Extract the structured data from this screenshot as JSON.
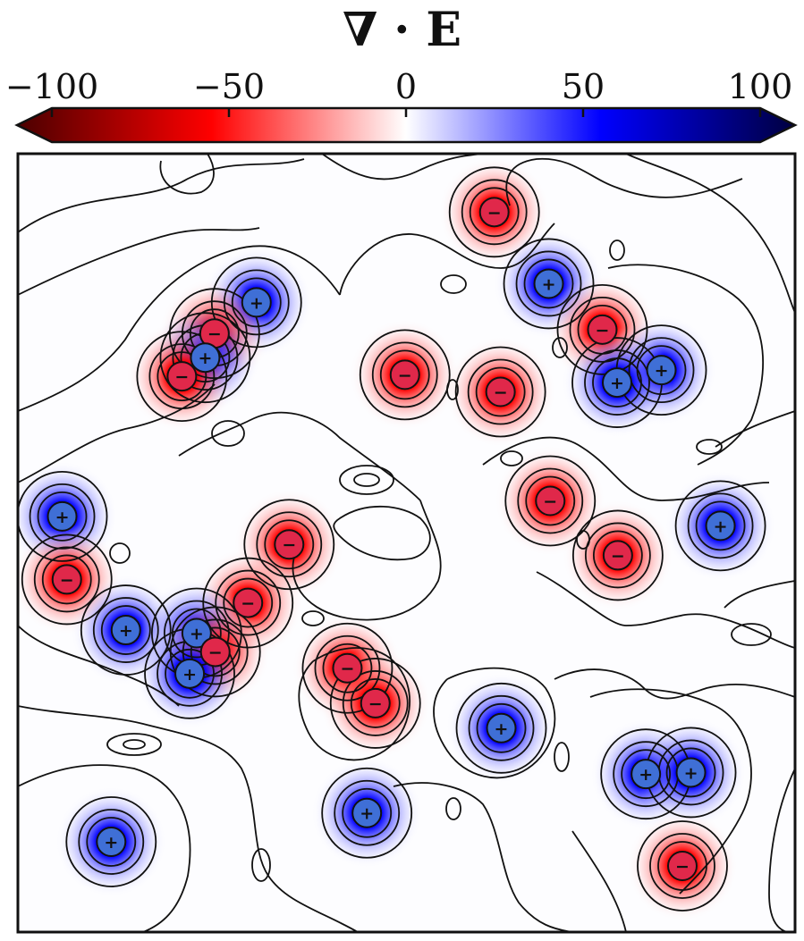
{
  "chart_data": {
    "type": "heatmap",
    "title": "∇ · E",
    "colorbar": {
      "position": "top",
      "colormap": "seismic",
      "range": [
        -100,
        100
      ],
      "ticks": [
        -100,
        -50,
        0,
        50,
        100
      ],
      "tick_labels": [
        "−100",
        "−50",
        "0",
        "50",
        "100"
      ],
      "extend": "both"
    },
    "sign_labels": {
      "positive": "+",
      "negative": "−"
    },
    "colors": {
      "positive": "#3f6fd6",
      "negative": "#e0284a",
      "positive_halo": "#0000ff",
      "negative_halo": "#ff0000"
    },
    "domain": {
      "x": [
        0,
        1
      ],
      "y": [
        0,
        1
      ]
    },
    "charges": [
      {
        "x": 0.307,
        "y": 0.809,
        "sign": 1
      },
      {
        "x": 0.253,
        "y": 0.769,
        "sign": -1
      },
      {
        "x": 0.241,
        "y": 0.738,
        "sign": 1
      },
      {
        "x": 0.211,
        "y": 0.714,
        "sign": -1
      },
      {
        "x": 0.613,
        "y": 0.925,
        "sign": -1
      },
      {
        "x": 0.683,
        "y": 0.833,
        "sign": 1
      },
      {
        "x": 0.752,
        "y": 0.774,
        "sign": -1
      },
      {
        "x": 0.828,
        "y": 0.722,
        "sign": 1
      },
      {
        "x": 0.771,
        "y": 0.706,
        "sign": 1
      },
      {
        "x": 0.498,
        "y": 0.716,
        "sign": -1
      },
      {
        "x": 0.621,
        "y": 0.694,
        "sign": -1
      },
      {
        "x": 0.057,
        "y": 0.534,
        "sign": 1
      },
      {
        "x": 0.063,
        "y": 0.453,
        "sign": -1
      },
      {
        "x": 0.349,
        "y": 0.498,
        "sign": -1
      },
      {
        "x": 0.296,
        "y": 0.423,
        "sign": -1
      },
      {
        "x": 0.139,
        "y": 0.388,
        "sign": 1
      },
      {
        "x": 0.23,
        "y": 0.384,
        "sign": 1
      },
      {
        "x": 0.254,
        "y": 0.36,
        "sign": -1
      },
      {
        "x": 0.221,
        "y": 0.332,
        "sign": 1
      },
      {
        "x": 0.685,
        "y": 0.554,
        "sign": -1
      },
      {
        "x": 0.772,
        "y": 0.484,
        "sign": -1
      },
      {
        "x": 0.904,
        "y": 0.522,
        "sign": 1
      },
      {
        "x": 0.424,
        "y": 0.339,
        "sign": -1
      },
      {
        "x": 0.46,
        "y": 0.294,
        "sign": -1
      },
      {
        "x": 0.622,
        "y": 0.262,
        "sign": 1
      },
      {
        "x": 0.449,
        "y": 0.153,
        "sign": 1
      },
      {
        "x": 0.12,
        "y": 0.116,
        "sign": 1
      },
      {
        "x": 0.808,
        "y": 0.203,
        "sign": 1
      },
      {
        "x": 0.866,
        "y": 0.205,
        "sign": 1
      },
      {
        "x": 0.855,
        "y": 0.085,
        "sign": -1
      }
    ]
  }
}
